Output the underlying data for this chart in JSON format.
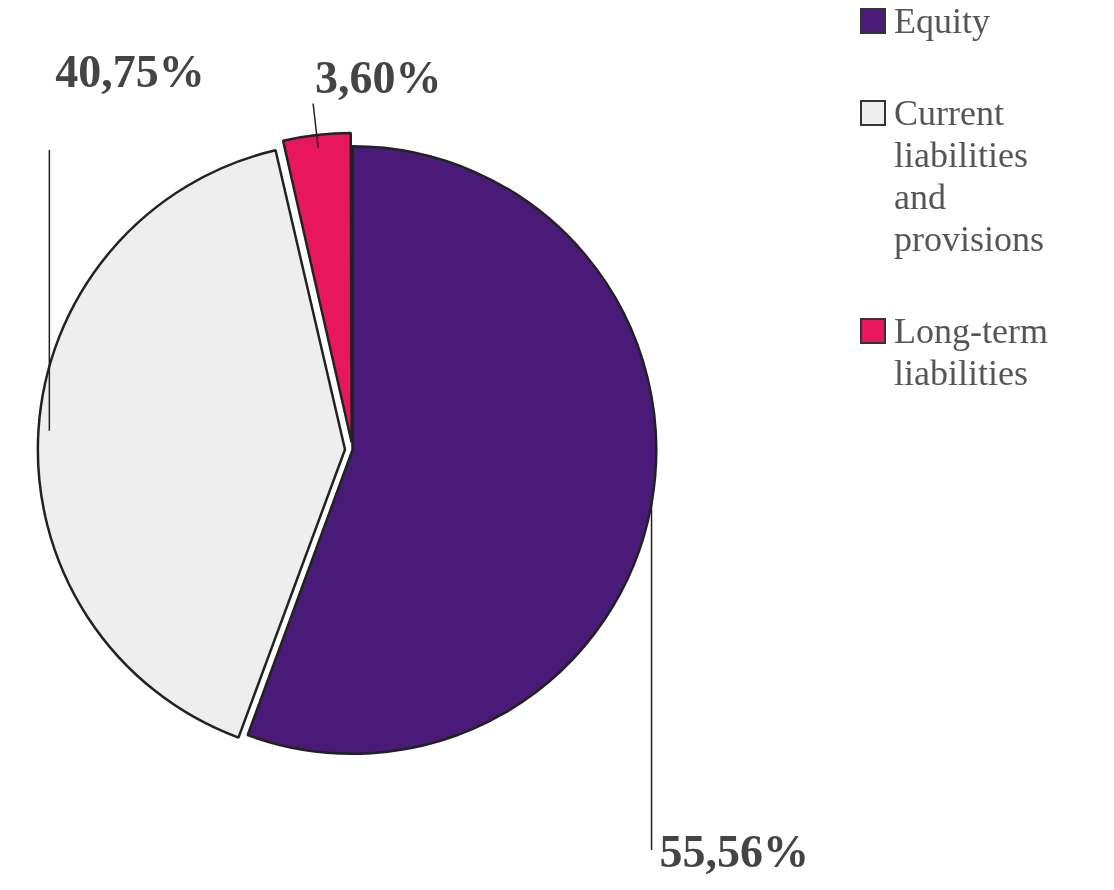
{
  "chart_data": {
    "type": "pie",
    "categories": [
      "Equity",
      "Current liabilities and provisions",
      "Long-term liabilities"
    ],
    "values": [
      55.56,
      40.75,
      3.6
    ],
    "colors": [
      "#4a1a78",
      "#eeeeee",
      "#e8175d"
    ],
    "value_labels": [
      "55,56%",
      "40,75%",
      "3,60%"
    ],
    "legend": "top right"
  }
}
